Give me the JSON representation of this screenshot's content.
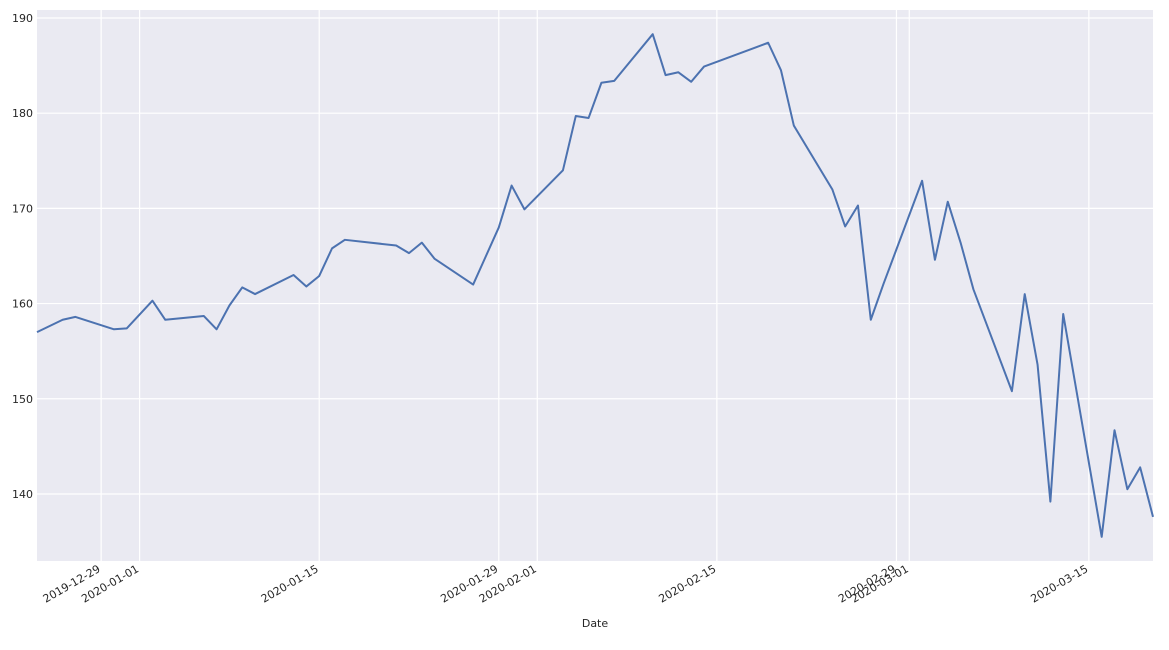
{
  "chart_data": {
    "type": "line",
    "xlabel": "Date",
    "x": [
      "2019-12-24",
      "2019-12-26",
      "2019-12-27",
      "2019-12-30",
      "2019-12-31",
      "2020-01-02",
      "2020-01-03",
      "2020-01-06",
      "2020-01-07",
      "2020-01-08",
      "2020-01-09",
      "2020-01-10",
      "2020-01-13",
      "2020-01-14",
      "2020-01-15",
      "2020-01-16",
      "2020-01-17",
      "2020-01-21",
      "2020-01-22",
      "2020-01-23",
      "2020-01-24",
      "2020-01-27",
      "2020-01-28",
      "2020-01-29",
      "2020-01-30",
      "2020-01-31",
      "2020-02-03",
      "2020-02-04",
      "2020-02-05",
      "2020-02-06",
      "2020-02-07",
      "2020-02-10",
      "2020-02-11",
      "2020-02-12",
      "2020-02-13",
      "2020-02-14",
      "2020-02-18",
      "2020-02-19",
      "2020-02-20",
      "2020-02-21",
      "2020-02-24",
      "2020-02-25",
      "2020-02-26",
      "2020-02-27",
      "2020-02-28",
      "2020-03-02",
      "2020-03-03",
      "2020-03-04",
      "2020-03-05",
      "2020-03-06",
      "2020-03-09",
      "2020-03-10",
      "2020-03-11",
      "2020-03-12",
      "2020-03-13",
      "2020-03-16",
      "2020-03-17",
      "2020-03-18",
      "2020-03-19",
      "2020-03-20"
    ],
    "series": [
      {
        "name": "Close",
        "color": "#4c72b0",
        "values": [
          157.0,
          158.3,
          158.6,
          157.3,
          157.4,
          160.3,
          158.3,
          158.7,
          157.3,
          159.8,
          161.7,
          161.0,
          163.0,
          161.8,
          162.9,
          165.8,
          166.7,
          166.1,
          165.3,
          166.4,
          164.7,
          162.0,
          165.0,
          168.0,
          172.4,
          169.9,
          174.0,
          179.7,
          179.5,
          183.2,
          183.4,
          188.3,
          184.0,
          184.3,
          183.3,
          184.9,
          186.9,
          187.4,
          184.5,
          178.7,
          172.0,
          168.1,
          170.3,
          158.3,
          162.1,
          172.9,
          164.6,
          170.7,
          166.4,
          161.5,
          150.8,
          161.0,
          153.6,
          139.2,
          158.9,
          135.5,
          146.7,
          140.5,
          142.8,
          137.6
        ]
      }
    ],
    "xlim": [
      "2019-12-24",
      "2020-03-20"
    ],
    "xticks": [
      "2019-12-29",
      "2020-01-01",
      "2020-01-15",
      "2020-01-29",
      "2020-02-01",
      "2020-02-15",
      "2020-02-29",
      "2020-03-01",
      "2020-03-15"
    ],
    "ylim": [
      132.96,
      190.84
    ],
    "yticks": [
      140,
      150,
      160,
      170,
      180,
      190
    ],
    "grid": true,
    "background": "#eaeaf2"
  }
}
